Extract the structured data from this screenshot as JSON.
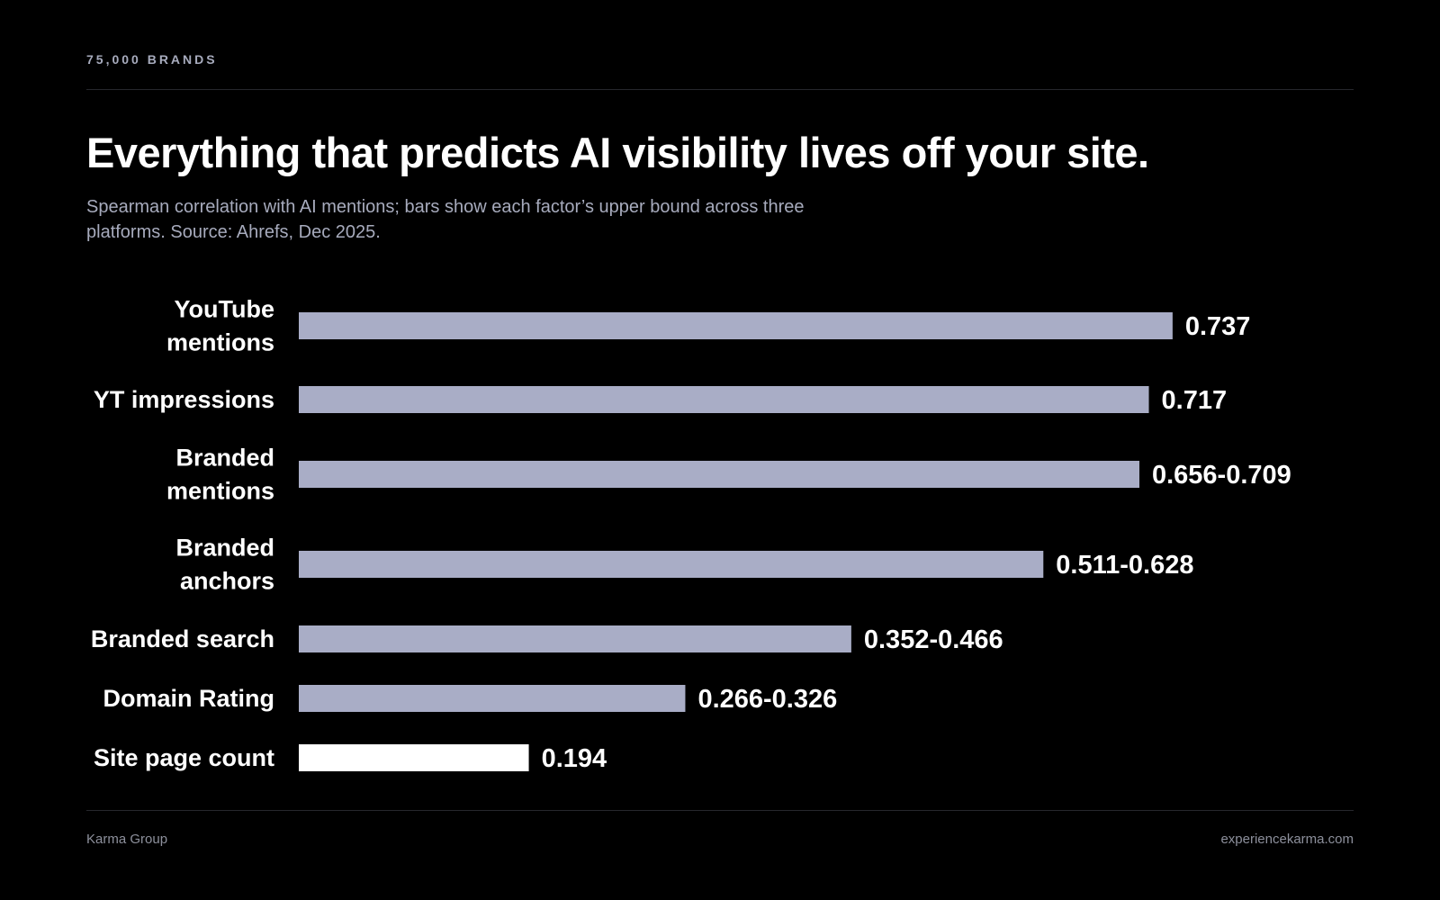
{
  "header": {
    "eyebrow": "75,000 BRANDS",
    "title": "Everything that predicts AI visibility lives off your site.",
    "subtitle": "Spearman correlation with AI mentions; bars show each factor’s upper bound across three platforms. Source: Ahrefs, Dec 2025."
  },
  "footer": {
    "left": "Karma Group",
    "right": "experiencekarma.com"
  },
  "chart_data": {
    "type": "bar",
    "orientation": "horizontal",
    "categories": [
      "YouTube mentions",
      "YT impressions",
      "Branded mentions",
      "Branded anchors",
      "Branded search",
      "Domain Rating",
      "Site page count"
    ],
    "category_lines": [
      [
        "YouTube",
        "mentions"
      ],
      [
        "YT impressions"
      ],
      [
        "Branded",
        "mentions"
      ],
      [
        "Branded",
        "anchors"
      ],
      [
        "Branded search"
      ],
      [
        "Domain Rating"
      ],
      [
        "Site page count"
      ]
    ],
    "values": [
      0.737,
      0.717,
      0.709,
      0.628,
      0.466,
      0.326,
      0.194
    ],
    "lower_bounds": [
      0.737,
      0.717,
      0.656,
      0.511,
      0.352,
      0.266,
      0.194
    ],
    "value_labels": [
      "0.737",
      "0.717",
      "0.656-0.709",
      "0.511-0.628",
      "0.352-0.466",
      "0.266-0.326",
      "0.194"
    ],
    "highlight_index": 6,
    "xlim": [
      0,
      0.75
    ],
    "grid": false,
    "colors": {
      "bar": "#a9adc6",
      "highlight": "#ffffff",
      "label": "#ffffff"
    }
  }
}
